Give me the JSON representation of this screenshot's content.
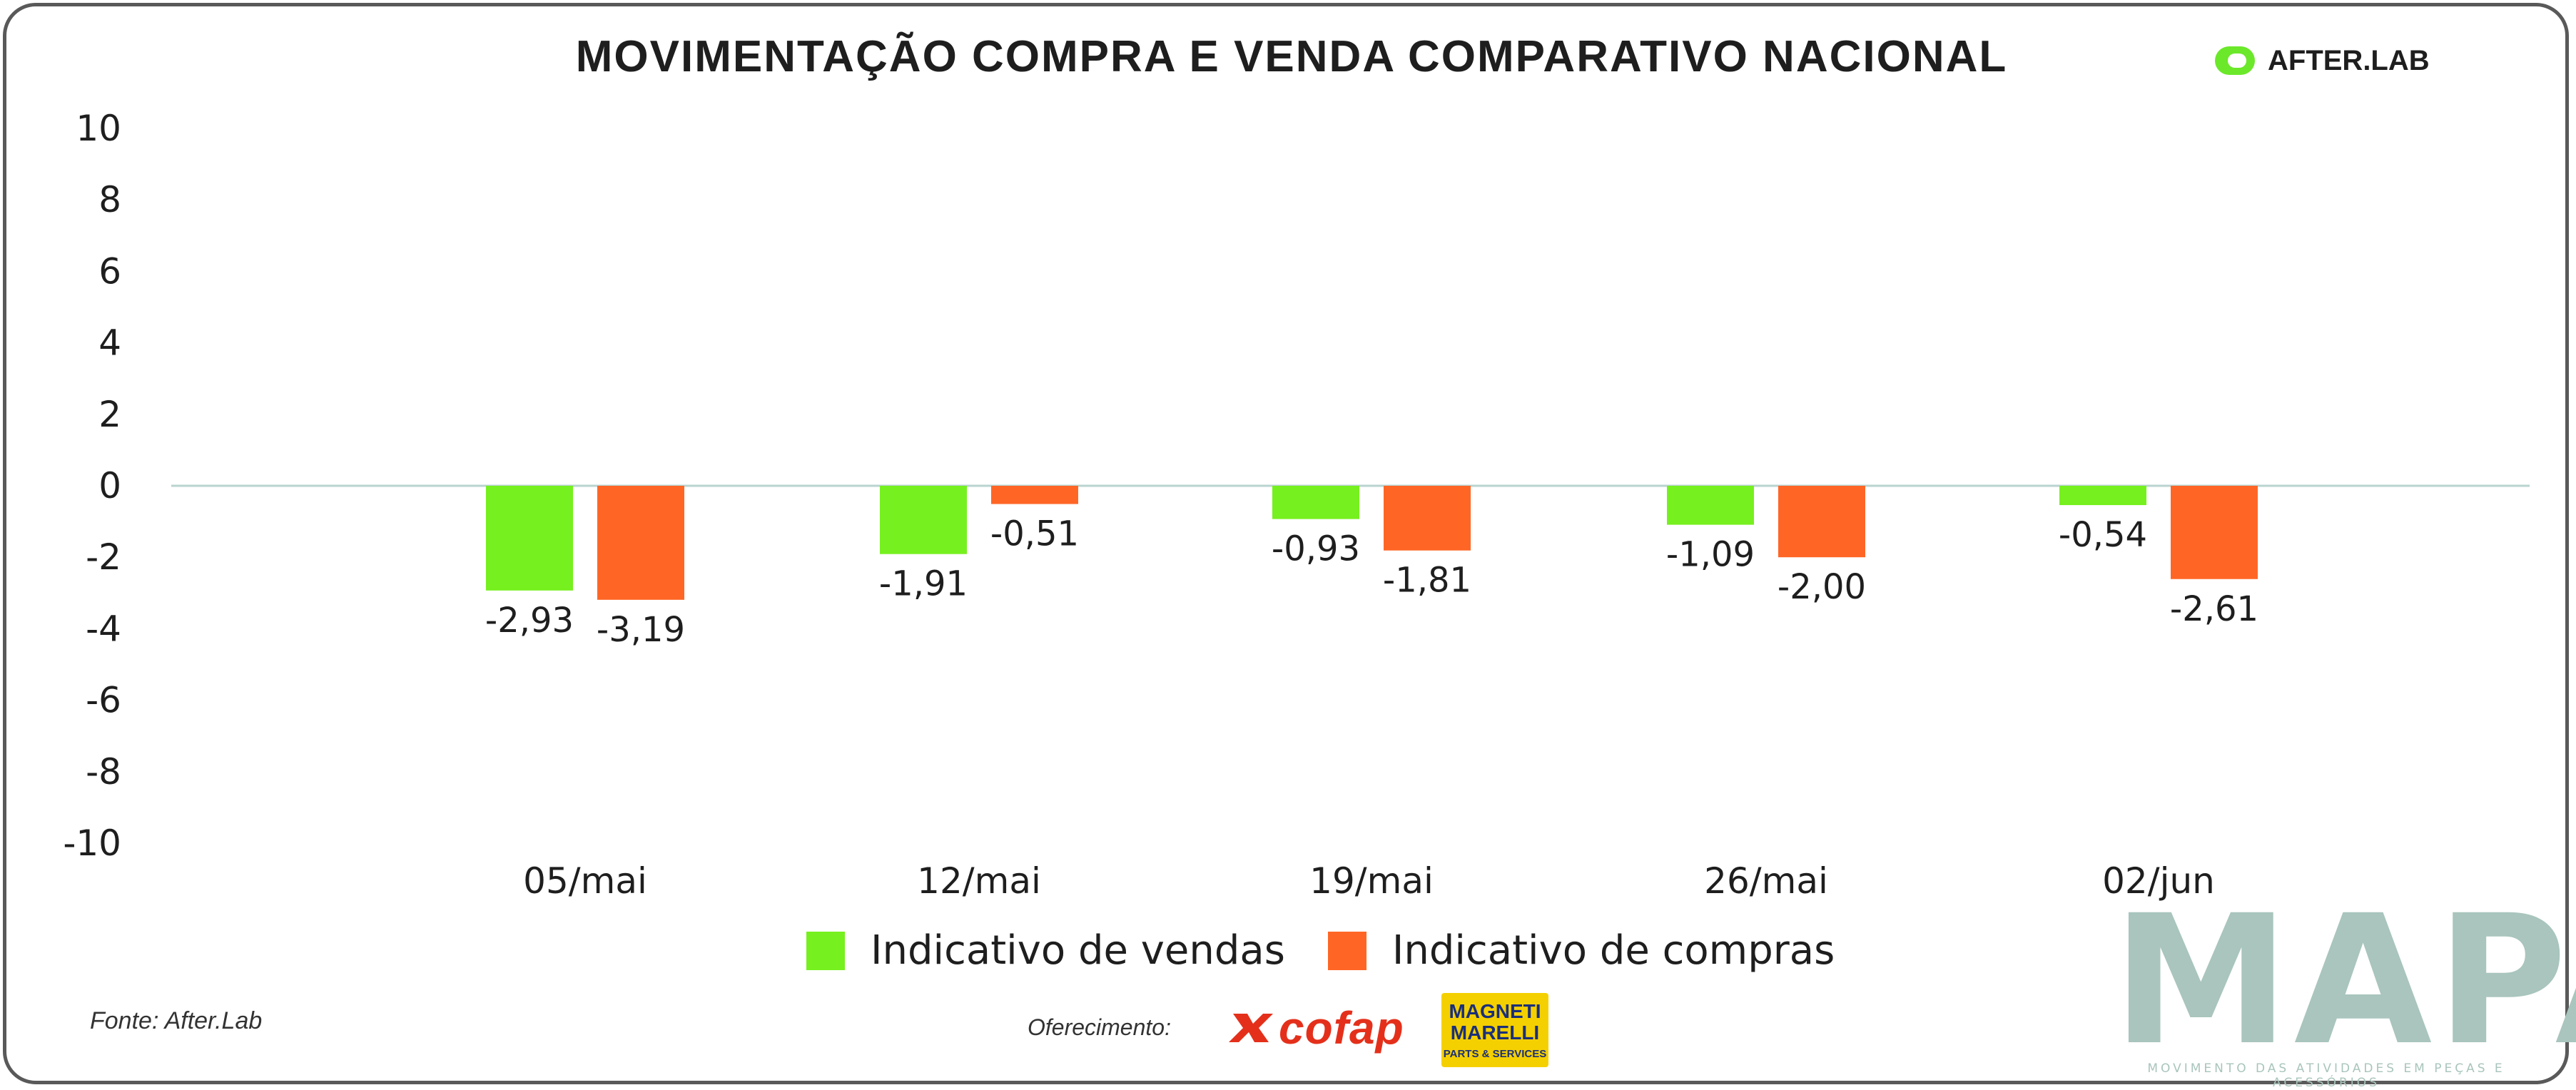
{
  "brand": {
    "name": "AFTER.LAB",
    "color": "#6be82a"
  },
  "footer": {
    "source": "Fonte: After.Lab",
    "offered_by": "Oferecimento:",
    "sponsor1": "cofap",
    "sponsor2_line1": "MAGNETI",
    "sponsor2_line2": "MARELLI",
    "sponsor2_sub": "PARTS & SERVICES",
    "publisher": "MAPA",
    "publisher_sub": "MOVIMENTO DAS ATIVIDADES EM PEÇAS E ACESSÓRIOS"
  },
  "chart_data": {
    "type": "bar",
    "title": "MOVIMENTAÇÃO COMPRA E VENDA COMPARATIVO NACIONAL",
    "categories": [
      "05/mai",
      "12/mai",
      "19/mai",
      "26/mai",
      "02/jun"
    ],
    "series": [
      {
        "name": "Indicativo de vendas",
        "color": "#76f01e",
        "values": [
          -2.93,
          -1.91,
          -0.93,
          -1.09,
          -0.54
        ],
        "labels": [
          "-2,93",
          "-1,91",
          "-0,93",
          "-1,09",
          "-0,54"
        ]
      },
      {
        "name": "Indicativo de compras",
        "color": "#ff6626",
        "values": [
          -3.19,
          -0.51,
          -1.81,
          -2.0,
          -2.61
        ],
        "labels": [
          "-3,19",
          "-0,51",
          "-1,81",
          "-2,00",
          "-2,61"
        ]
      }
    ],
    "ylim": [
      -10,
      10
    ],
    "yticks": [
      10,
      8,
      6,
      4,
      2,
      0,
      -2,
      -4,
      -6,
      -8,
      -10
    ],
    "ytick_labels": [
      "10",
      "8",
      "6",
      "4",
      "2",
      "0",
      "-2",
      "-4",
      "-6",
      "-8",
      "-10"
    ],
    "xlabel": "",
    "ylabel": "",
    "legend": "bottom-center",
    "zero_line_color": "#b9d3cf"
  }
}
